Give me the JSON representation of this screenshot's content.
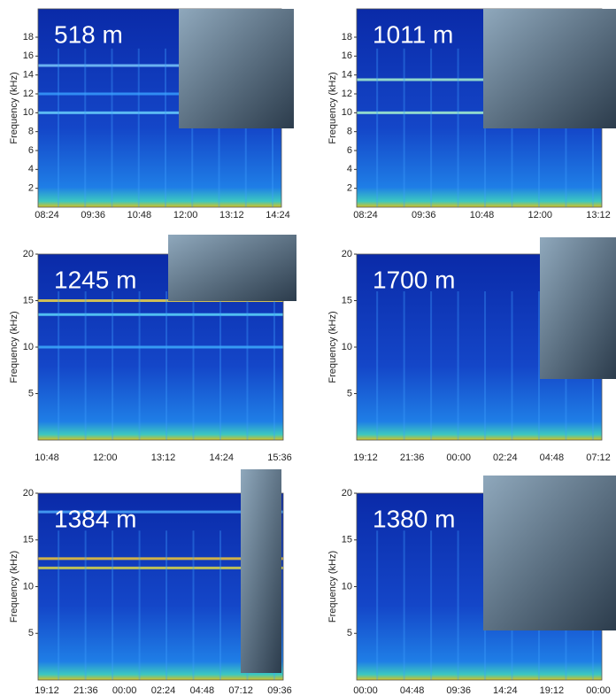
{
  "chart_data": [
    {
      "type": "spectrogram",
      "annotation": "518 m",
      "y_label": "Frequency (kHz)",
      "ylim": [
        0,
        21
      ],
      "yticks": [
        2,
        4,
        6,
        8,
        10,
        12,
        14,
        16,
        18
      ],
      "categories": [
        "08:24",
        "09:36",
        "10:48",
        "12:00",
        "13:12",
        "14:24"
      ]
    },
    {
      "type": "spectrogram",
      "annotation": "1011 m",
      "y_label": "Frequency (kHz)",
      "ylim": [
        0,
        21
      ],
      "yticks": [
        2,
        4,
        6,
        8,
        10,
        12,
        14,
        16,
        18
      ],
      "categories": [
        "08:24",
        "09:36",
        "10:48",
        "12:00",
        "13:12"
      ]
    },
    {
      "type": "spectrogram",
      "annotation": "1245 m",
      "y_label": "Frequency (kHz)",
      "ylim": [
        0,
        20
      ],
      "yticks": [
        5,
        10,
        15,
        20
      ],
      "categories": [
        "10:48",
        "12:00",
        "13:12",
        "14:24",
        "15:36"
      ]
    },
    {
      "type": "spectrogram",
      "annotation": "1700 m",
      "y_label": "Frequency (kHz)",
      "ylim": [
        0,
        20
      ],
      "yticks": [
        5,
        10,
        15,
        20
      ],
      "categories": [
        "19:12",
        "21:36",
        "00:00",
        "02:24",
        "04:48",
        "07:12"
      ]
    },
    {
      "type": "spectrogram",
      "annotation": "1384 m",
      "y_label": "Frequency (kHz)",
      "ylim": [
        0,
        20
      ],
      "yticks": [
        5,
        10,
        15,
        20
      ],
      "categories": [
        "19:12",
        "21:36",
        "00:00",
        "02:24",
        "04:48",
        "07:12",
        "09:36"
      ]
    },
    {
      "type": "spectrogram",
      "annotation": "1380 m",
      "y_label": "Frequency (kHz)",
      "ylim": [
        0,
        20
      ],
      "yticks": [
        5,
        10,
        15,
        20
      ],
      "categories": [
        "00:00",
        "04:48",
        "09:36",
        "14:24",
        "19:12",
        "00:00"
      ]
    }
  ]
}
